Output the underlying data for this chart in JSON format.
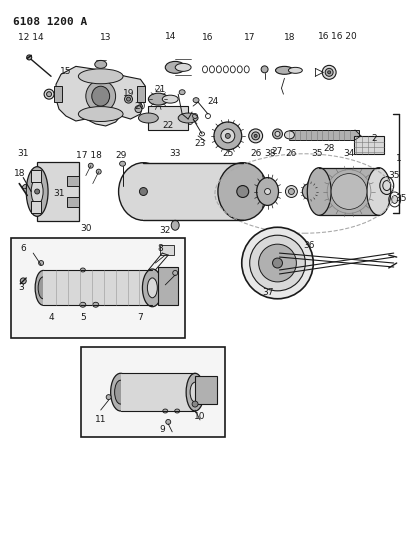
{
  "title": "6108 1200 A",
  "bg_color": "#ffffff",
  "line_color": "#1a1a1a",
  "fig_width": 4.1,
  "fig_height": 5.33,
  "dpi": 100
}
